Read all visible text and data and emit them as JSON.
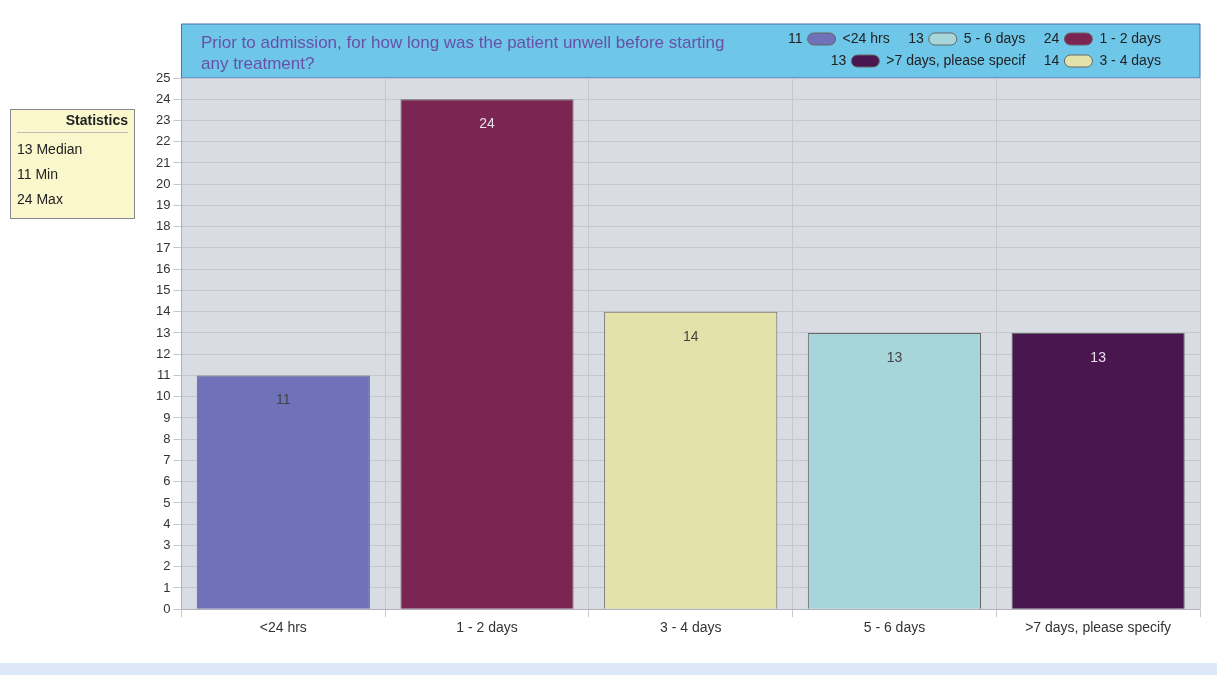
{
  "chart_data": {
    "type": "bar",
    "title": "Prior to admission, for how long was the patient unwell before starting any treatment?",
    "categories": [
      "<24 hrs",
      "1 - 2 days",
      "3 - 4 days",
      "5 - 6 days",
      ">7 days, please specify"
    ],
    "series": [
      {
        "name": "<24 hrs",
        "color": "#6f72b8",
        "values": [
          11,
          null,
          null,
          null,
          null
        ]
      },
      {
        "name": "1 - 2 days",
        "color": "#7a2552",
        "values": [
          null,
          24,
          null,
          null,
          null
        ]
      },
      {
        "name": "3 - 4 days",
        "color": "#e2e2aa",
        "values": [
          null,
          null,
          14,
          null,
          null
        ]
      },
      {
        "name": "5 - 6 days",
        "color": "#a6d6da",
        "values": [
          null,
          null,
          null,
          13,
          null
        ]
      },
      {
        "name": ">7 days, please specif",
        "color": "#4a1650",
        "values": [
          null,
          null,
          null,
          null,
          13
        ]
      }
    ],
    "ylim": [
      0,
      25
    ],
    "yticks": [
      0,
      1,
      2,
      3,
      4,
      5,
      6,
      7,
      8,
      9,
      10,
      11,
      12,
      13,
      14,
      15,
      16,
      17,
      18,
      19,
      20,
      21,
      22,
      23,
      24,
      25
    ],
    "grid": true,
    "legend": "top right",
    "data_labels": true,
    "annotations": [
      "Statistics",
      "13 Median",
      "11 Min",
      "24 Max",
      "11",
      "24",
      "14",
      "13",
      "13"
    ]
  }
}
